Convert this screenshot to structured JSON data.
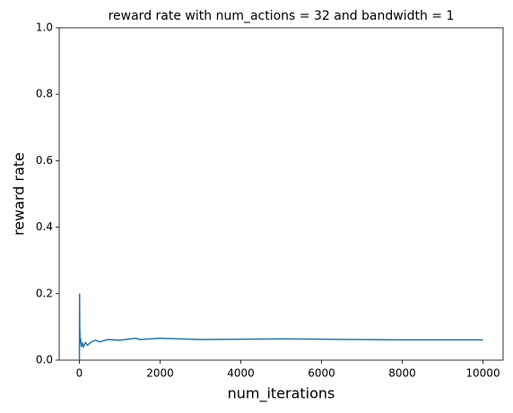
{
  "chart_data": {
    "type": "line",
    "title": "reward rate with num_actions = 32 and bandwidth = 1",
    "x_label": "num_iterations",
    "y_label": "reward rate",
    "x": [
      1,
      5,
      10,
      20,
      30,
      50,
      80,
      100,
      150,
      200,
      300,
      400,
      500,
      700,
      1000,
      1400,
      1500,
      2000,
      2500,
      3000,
      4000,
      5000,
      6000,
      7000,
      8000,
      9000,
      10000
    ],
    "series": [
      {
        "name": "reward rate",
        "color": "#1f77b4",
        "values": [
          0,
          0.2,
          0.1,
          0.05,
          0.067,
          0.04,
          0.05,
          0.04,
          0.053,
          0.045,
          0.055,
          0.06,
          0.055,
          0.062,
          0.06,
          0.066,
          0.062,
          0.066,
          0.064,
          0.062,
          0.063,
          0.064,
          0.063,
          0.062,
          0.061,
          0.061,
          0.061
        ]
      }
    ],
    "xlim": [
      -500,
      10500
    ],
    "xticks": [
      0,
      2000,
      4000,
      6000,
      8000,
      10000
    ],
    "ylim": [
      0,
      1
    ],
    "yticks": [
      {
        "value": 0,
        "label": "0.0"
      },
      0.2,
      0.4,
      0.6,
      0.8,
      {
        "value": 1,
        "label": "1.0"
      }
    ]
  }
}
